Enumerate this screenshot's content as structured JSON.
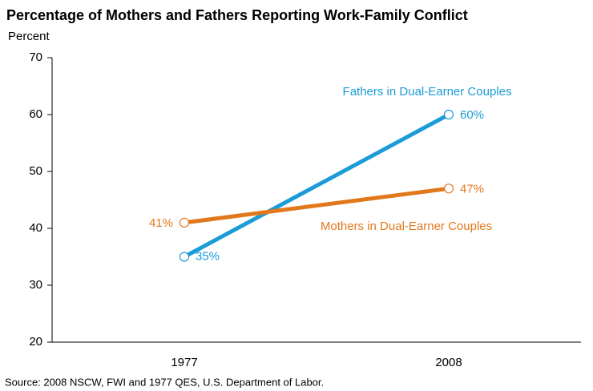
{
  "chart_data": {
    "type": "line",
    "title": "Percentage of Mothers and Fathers Reporting Work-Family Conflict",
    "y_label": "Percent",
    "source": "Source: 2008 NSCW, FWI and 1977 QES, U.S. Department of Labor.",
    "categories": [
      "1977",
      "2008"
    ],
    "series": [
      {
        "name": "Fathers in Dual-Earner Couples",
        "color": "#1b9bd7",
        "values": [
          35,
          60
        ],
        "value_labels": [
          "35%",
          "60%"
        ]
      },
      {
        "name": "Mothers in Dual-Earner Couples",
        "color": "#e2781c",
        "values": [
          41,
          47
        ],
        "value_labels": [
          "41%",
          "47%"
        ]
      }
    ],
    "ylim": [
      20,
      70
    ],
    "yticks": [
      20,
      30,
      40,
      50,
      60,
      70
    ]
  }
}
